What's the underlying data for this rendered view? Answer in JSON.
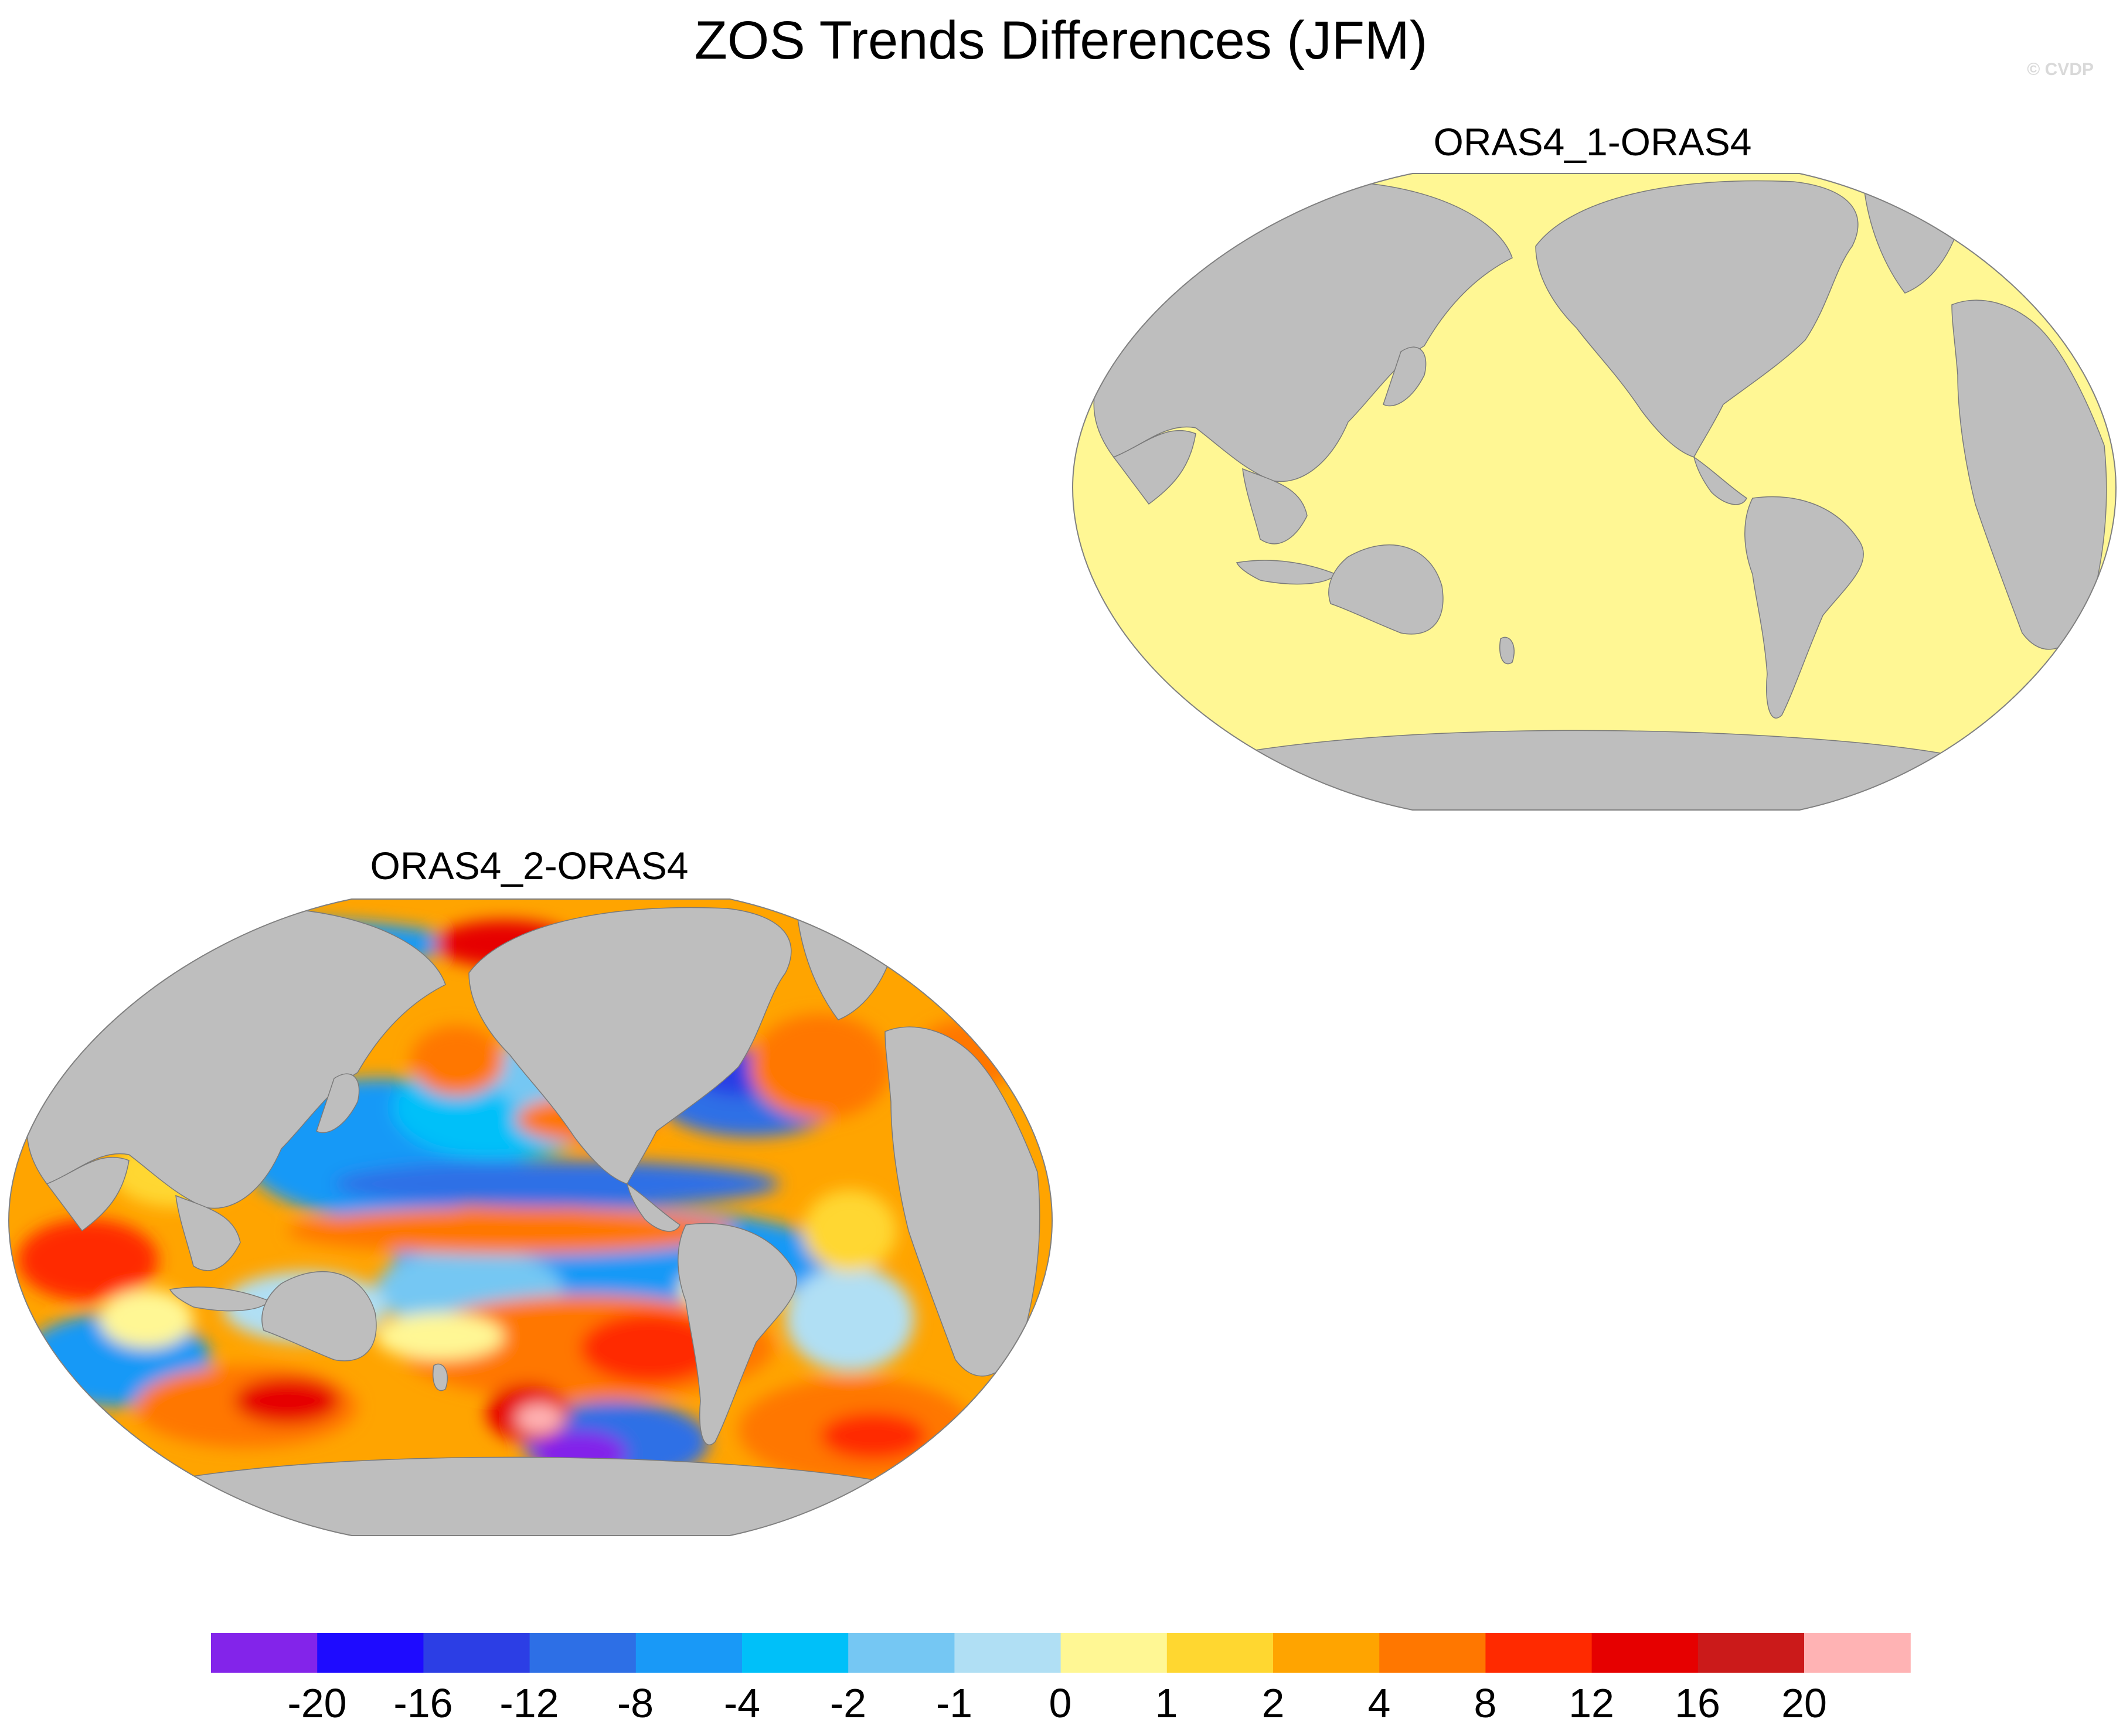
{
  "figure": {
    "title": "ZOS Trends Differences (JFM)",
    "watermark": "© CVDP",
    "colors": {
      "land": "#bebebe",
      "background": "#ffffff",
      "missing": "#ffffff"
    }
  },
  "panels": [
    {
      "id": "oras4_1",
      "title": "ORAS4_1-ORAS4",
      "field": "uniform",
      "ocean_color": "#fff794"
    },
    {
      "id": "oras4_2",
      "title": "ORAS4_2-ORAS4",
      "field": "varied",
      "ocean_color": "#ffa400"
    }
  ],
  "colorbar": {
    "labels": [
      "-20",
      "-16",
      "-12",
      "-8",
      "-4",
      "-2",
      "-1",
      "0",
      "1",
      "2",
      "4",
      "8",
      "12",
      "16",
      "20"
    ],
    "colors": [
      "#8324ea",
      "#1e0bff",
      "#2c3ee5",
      "#2d6fe6",
      "#1999f7",
      "#00c0f9",
      "#75c7f3",
      "#b0dff4",
      "#fff794",
      "#ffd730",
      "#ffa400",
      "#ff7700",
      "#ff2a00",
      "#e60000",
      "#cb1a1a",
      "#ffb3b4"
    ]
  }
}
